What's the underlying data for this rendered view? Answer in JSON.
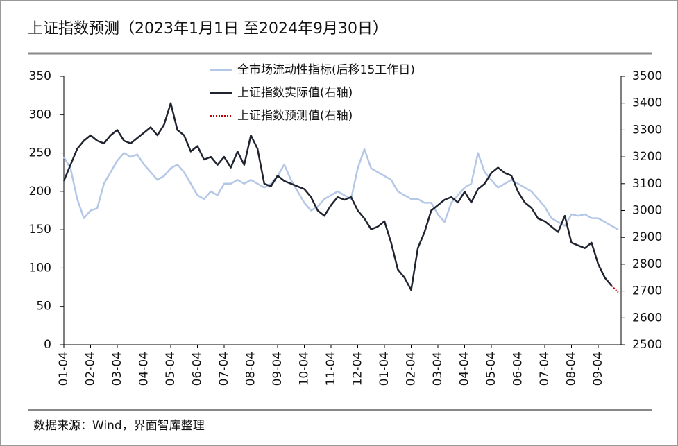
{
  "chart_data": {
    "type": "line",
    "title": "上证指数预测（2023年1月1日 至2024年9月30日）",
    "source": "数据来源：Wind，界面智库整理",
    "categories": [
      "01-04",
      null,
      null,
      null,
      "02-04",
      null,
      null,
      null,
      "03-04",
      null,
      null,
      null,
      "04-04",
      null,
      null,
      null,
      "05-04",
      null,
      null,
      null,
      "06-04",
      null,
      null,
      null,
      "07-04",
      null,
      null,
      null,
      "08-04",
      null,
      null,
      null,
      "09-04",
      null,
      null,
      null,
      "10-04",
      null,
      null,
      null,
      "11-04",
      null,
      null,
      null,
      "12-04",
      null,
      null,
      null,
      "01-04",
      null,
      null,
      null,
      "02-04",
      null,
      null,
      null,
      "03-04",
      null,
      null,
      null,
      "04-04",
      null,
      null,
      null,
      "05-04",
      null,
      null,
      null,
      "06-04",
      null,
      null,
      null,
      "07-04",
      null,
      null,
      null,
      "08-04",
      null,
      null,
      null,
      "09-04",
      null,
      null,
      null
    ],
    "series": [
      {
        "name": "全市场流动性指标(后移15工作日)",
        "color": "#b4c7e7",
        "axis": "y",
        "values": [
          245,
          230,
          190,
          165,
          175,
          178,
          210,
          225,
          240,
          250,
          245,
          248,
          235,
          225,
          215,
          220,
          230,
          235,
          225,
          210,
          195,
          190,
          200,
          195,
          210,
          210,
          215,
          210,
          215,
          210,
          205,
          210,
          220,
          235,
          215,
          200,
          185,
          175,
          180,
          190,
          195,
          200,
          195,
          190,
          230,
          255,
          230,
          225,
          220,
          215,
          200,
          195,
          190,
          190,
          185,
          185,
          170,
          160,
          185,
          195,
          205,
          210,
          250,
          225,
          215,
          205,
          210,
          215,
          210,
          205,
          200,
          190,
          180,
          165,
          160,
          155,
          170,
          168,
          170,
          165,
          165,
          160,
          155,
          150
        ]
      },
      {
        "name": "上证指数实际值(右轴)",
        "color": "#1f2430",
        "axis": "y2",
        "values": [
          3110,
          3170,
          3230,
          3260,
          3280,
          3260,
          3250,
          3280,
          3300,
          3260,
          3250,
          3270,
          3290,
          3310,
          3280,
          3320,
          3400,
          3300,
          3280,
          3220,
          3240,
          3190,
          3200,
          3170,
          3200,
          3160,
          3220,
          3170,
          3280,
          3230,
          3100,
          3090,
          3130,
          3110,
          3100,
          3090,
          3080,
          3050,
          3000,
          2980,
          3020,
          3050,
          3040,
          3050,
          3000,
          2970,
          2930,
          2940,
          2960,
          2880,
          2780,
          2750,
          2704,
          2860,
          2920,
          3000,
          3020,
          3040,
          3050,
          3030,
          3070,
          3030,
          3080,
          3100,
          3140,
          3160,
          3140,
          3130,
          3070,
          3030,
          3010,
          2970,
          2960,
          2940,
          2920,
          2980,
          2880,
          2870,
          2860,
          2880,
          2800,
          2750,
          2720,
          null
        ]
      },
      {
        "name": "上证指数预测值(右轴)",
        "color": "#c00000",
        "axis": "y2",
        "values": [
          null,
          null,
          null,
          null,
          null,
          null,
          null,
          null,
          null,
          null,
          null,
          null,
          null,
          null,
          null,
          null,
          null,
          null,
          null,
          null,
          null,
          null,
          null,
          null,
          null,
          null,
          null,
          null,
          null,
          null,
          null,
          null,
          null,
          null,
          null,
          null,
          null,
          null,
          null,
          null,
          null,
          null,
          null,
          null,
          null,
          null,
          null,
          null,
          null,
          null,
          null,
          null,
          null,
          null,
          null,
          null,
          null,
          null,
          null,
          null,
          null,
          null,
          null,
          null,
          null,
          null,
          null,
          null,
          null,
          null,
          null,
          null,
          null,
          null,
          null,
          null,
          null,
          null,
          null,
          null,
          null,
          null,
          2720,
          2695
        ]
      }
    ],
    "ylim": [
      0,
      350
    ],
    "yticks": [
      0,
      50,
      100,
      150,
      200,
      250,
      300,
      350
    ],
    "y2lim": [
      2500,
      3500
    ],
    "y2ticks": [
      2500,
      2600,
      2700,
      2800,
      2900,
      3000,
      3100,
      3200,
      3300,
      3400,
      3500
    ]
  }
}
